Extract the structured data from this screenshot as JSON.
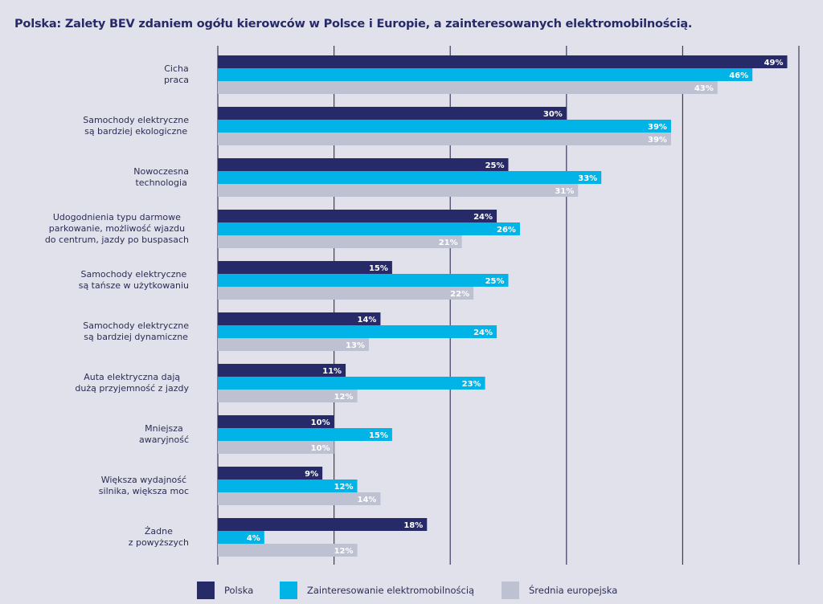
{
  "title": "Polska: Zalety BEV zdaniem ogółu kierowców w Polsce i Europie, a zainteresowanych elektromobilnością.",
  "chart_data": {
    "type": "bar",
    "orientation": "horizontal",
    "title": "Polska: Zalety BEV zdaniem ogółu kierowców w Polsce i Europie, a zainteresowanych elektromobilnością.",
    "categories": [
      [
        "Cicha",
        "praca"
      ],
      [
        "Samochody elektryczne",
        "są bardziej ekologiczne"
      ],
      [
        "Nowoczesna",
        "technologia"
      ],
      [
        "Udogodnienia typu darmowe",
        "parkowanie, możliwość wjazdu",
        "do centrum, jazdy po buspasach"
      ],
      [
        "Samochody elektryczne",
        "są tańsze w użytkowaniu"
      ],
      [
        "Samochody elektryczne",
        "są bardziej dynamiczne"
      ],
      [
        "Auta elektryczna dają",
        "dużą przyjemność z jazdy"
      ],
      [
        "Mniejsza",
        "awaryjność"
      ],
      [
        "Większa wydajność",
        "silnika, większa moc"
      ],
      [
        "Żadne",
        "z powyższych"
      ]
    ],
    "series": [
      {
        "name": "Polska",
        "color": "#262a68",
        "values": [
          49,
          30,
          25,
          24,
          15,
          14,
          11,
          10,
          9,
          18
        ]
      },
      {
        "name": "Zainteresowanie elektromobilnością",
        "color": "#00b4e8",
        "values": [
          46,
          39,
          33,
          26,
          25,
          24,
          23,
          15,
          12,
          4
        ]
      },
      {
        "name": "Średnia europejska",
        "color": "#bec1d2",
        "values": [
          43,
          39,
          31,
          21,
          22,
          13,
          12,
          10,
          14,
          12
        ]
      }
    ],
    "xlim": [
      0,
      50
    ],
    "grid": true,
    "gridlines_every": 10,
    "value_suffix": "%",
    "legend_position": "bottom"
  }
}
